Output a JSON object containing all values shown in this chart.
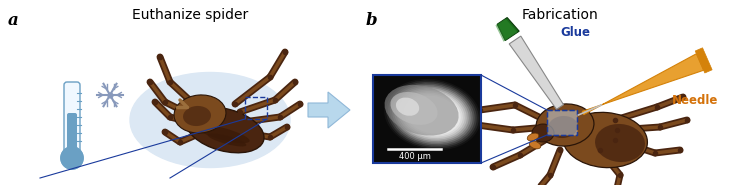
{
  "fig_width": 7.4,
  "fig_height": 1.85,
  "dpi": 100,
  "bg_color": "#ffffff",
  "panel_a_label": "a",
  "panel_b_label": "b",
  "title_a": "Euthanize spider",
  "title_b": "Fabrication",
  "label_glue": "Glue",
  "label_needle": "Needle",
  "scale_bar_text": "400 μm",
  "arrow_color": "#b8d8ec",
  "glue_label_color": "#1a3a9c",
  "needle_label_color": "#d4720a",
  "panel_label_fontsize": 12,
  "title_fontsize": 10,
  "annotation_fontsize": 8.5,
  "spider_brown_dark": "#4a2510",
  "spider_brown_mid": "#7b4a1e",
  "spider_brown_main": "#6b3c18",
  "spider_brown_light": "#9B6e3c",
  "thermometer_blue": "#6aa0c4",
  "snowflake_gray": "#9ab0c8",
  "glue_green": "#1a6a1a",
  "glue_green2": "#2d8a2d",
  "needle_orange": "#d4820a",
  "needle_orange2": "#e8a030",
  "blue_box_color": "#1a3a9c",
  "ellipse_bg": "#dce8f4",
  "inset_border": "#1a3a9c",
  "sem_dark": "#1a1a1a",
  "sem_light": "#cccccc"
}
